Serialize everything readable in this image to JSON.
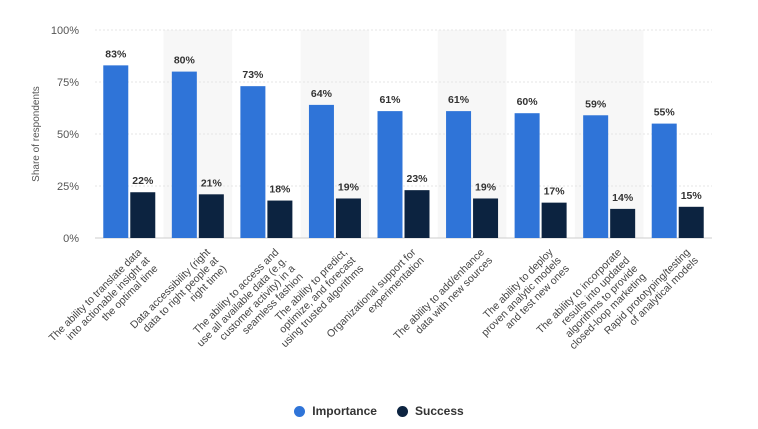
{
  "chart_data": {
    "type": "bar",
    "ylabel": "Share of respondents",
    "ylim": [
      0,
      100
    ],
    "yticks": [
      "0%",
      "25%",
      "50%",
      "75%",
      "100%"
    ],
    "ytick_values": [
      0,
      25,
      50,
      75,
      100
    ],
    "categories": [
      [
        "The ability to translate data",
        "into actionable insight at",
        "the optimal time"
      ],
      [
        "Data accessibility (right",
        "data to right people at",
        "right time)"
      ],
      [
        "The ability to access and",
        "use all available data (e.g.",
        "customer activity) in a",
        "seamless fashion"
      ],
      [
        "The ability to predict,",
        "optimize, and forecast",
        "using trusted algorithms"
      ],
      [
        "Organizational support for",
        "experimentation"
      ],
      [
        "The ability to add/enhance",
        "data with new sources"
      ],
      [
        "The ability to deploy",
        "proven analytic models",
        "and test new ones"
      ],
      [
        "The ability to incorporate",
        "results into updated",
        "algorithms to provide",
        "closed-loop marketing"
      ],
      [
        "Rapid prototyping/testing",
        "of analytical models"
      ]
    ],
    "series": [
      {
        "name": "Importance",
        "color": "#2f74d8",
        "values": [
          83,
          80,
          73,
          64,
          61,
          61,
          60,
          59,
          55
        ],
        "labels": [
          "83%",
          "80%",
          "73%",
          "64%",
          "61%",
          "61%",
          "60%",
          "59%",
          "55%"
        ]
      },
      {
        "name": "Success",
        "color": "#0c2340",
        "values": [
          22,
          21,
          18,
          19,
          23,
          19,
          17,
          14,
          15
        ],
        "labels": [
          "22%",
          "21%",
          "18%",
          "19%",
          "23%",
          "19%",
          "17%",
          "14%",
          "15%"
        ]
      }
    ],
    "grid": true,
    "legend_position": "bottom-center"
  }
}
